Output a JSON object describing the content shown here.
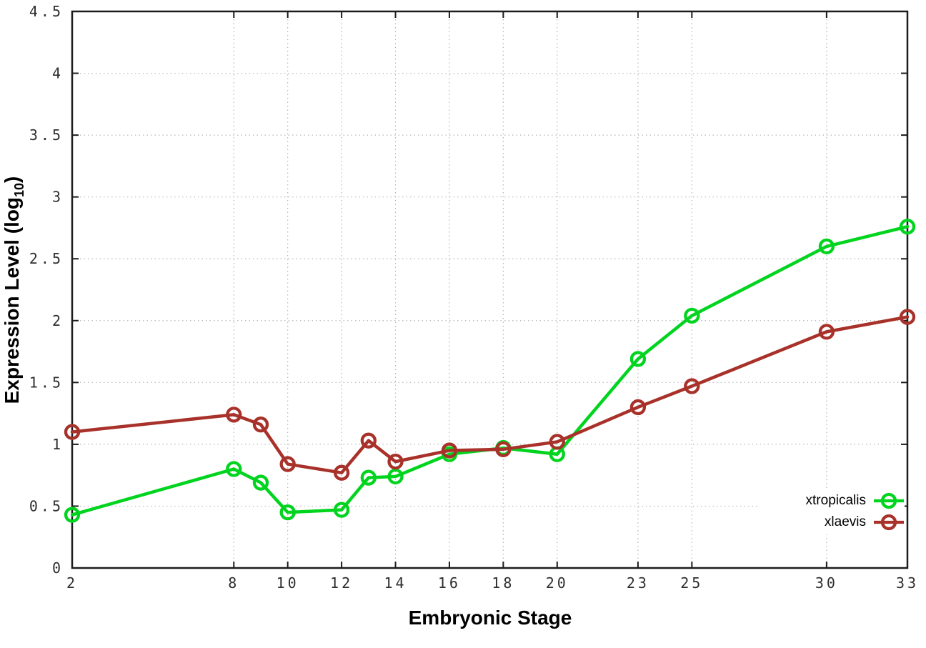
{
  "chart_data": {
    "type": "line",
    "title": "",
    "xlabel": "Embryonic Stage",
    "ylabel_prefix": "Expression Level (log",
    "ylabel_sub": "10",
    "ylabel_suffix": ")",
    "xlim": [
      2,
      33
    ],
    "ylim": [
      0,
      4.5
    ],
    "x_ticks": [
      2,
      8,
      10,
      12,
      14,
      16,
      18,
      20,
      23,
      25,
      30,
      33
    ],
    "y_ticks": [
      0,
      0.5,
      1,
      1.5,
      2,
      2.5,
      3,
      3.5,
      4,
      4.5
    ],
    "y_tick_labels": [
      "0",
      "0.5",
      "1",
      "1.5",
      "2",
      "2.5",
      "3",
      "3.5",
      "4",
      "4.5"
    ],
    "grid": "dotted",
    "legend_position": "inside-right-lower",
    "x": [
      2,
      8,
      9,
      10,
      12,
      13,
      14,
      16,
      18,
      20,
      23,
      25,
      30,
      33
    ],
    "series": [
      {
        "name": "xtropicalis",
        "color": "#00d41e",
        "marker": "open-circle",
        "values": [
          0.43,
          0.8,
          0.69,
          0.45,
          0.47,
          0.73,
          0.74,
          0.92,
          0.97,
          0.92,
          1.69,
          2.04,
          2.6,
          2.76
        ]
      },
      {
        "name": "xlaevis",
        "color": "#a8312a",
        "marker": "open-circle",
        "values": [
          1.1,
          1.24,
          1.16,
          0.84,
          0.77,
          1.03,
          0.86,
          0.95,
          0.96,
          1.02,
          1.3,
          1.47,
          1.91,
          2.03
        ]
      }
    ],
    "style_colors": {
      "grid": "#b5b5b5",
      "border": "#1c1c1c",
      "tick_label": "#2e2e2e",
      "axis_title": "#000000",
      "background": "#ffffff"
    }
  }
}
